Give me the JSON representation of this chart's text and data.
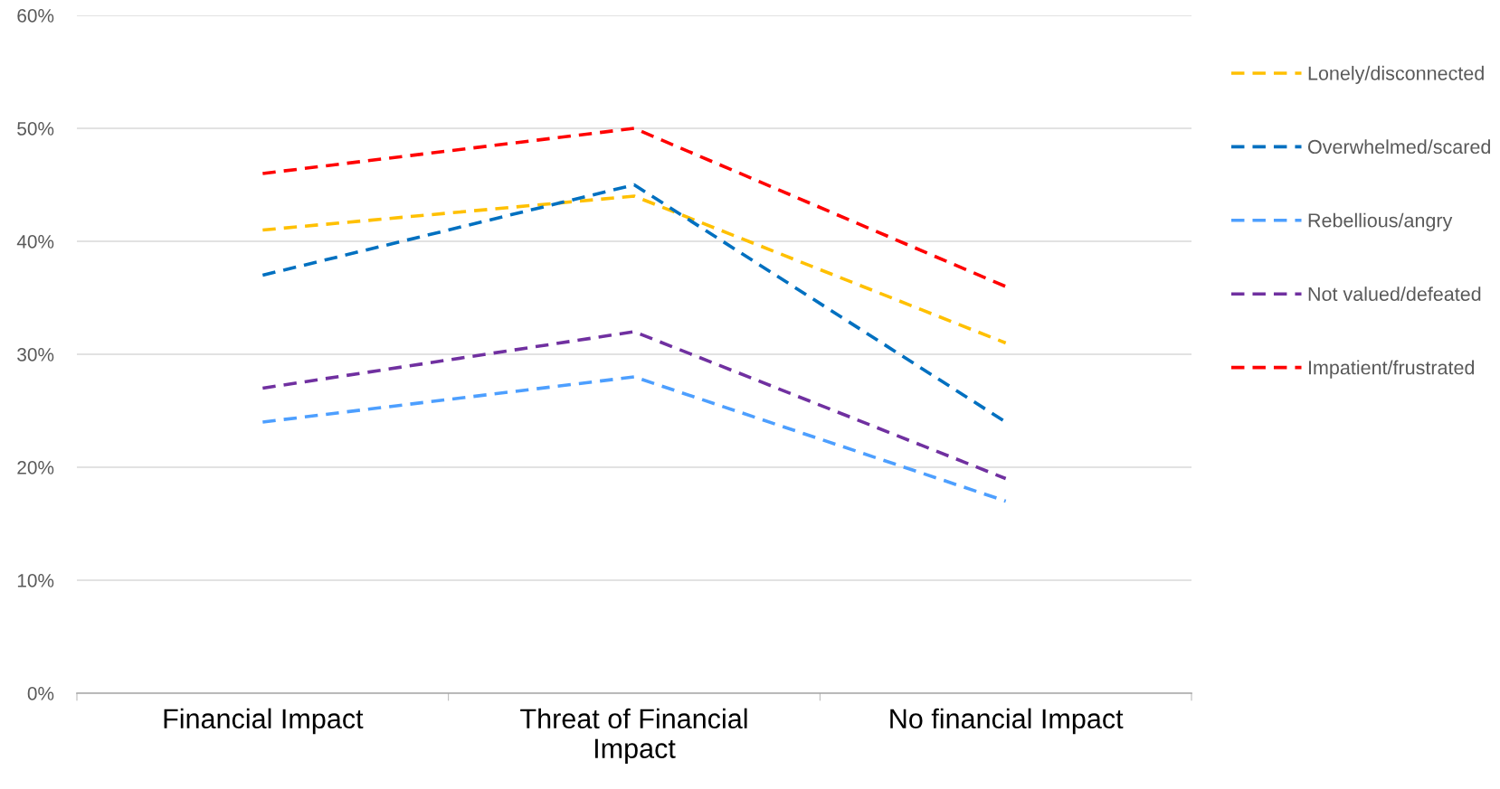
{
  "chart_data": {
    "type": "line",
    "categories": [
      "Financial Impact",
      "Threat of Financial\nImpact",
      "No financial Impact"
    ],
    "series": [
      {
        "name": "Lonely/disconnected",
        "color": "#ffc000",
        "values": [
          41,
          44,
          31
        ]
      },
      {
        "name": "Overwhelmed/scared",
        "color": "#0070c0",
        "values": [
          37,
          45,
          24
        ]
      },
      {
        "name": "Rebellious/angry",
        "color": "#4d9fff",
        "values": [
          24,
          28,
          17
        ]
      },
      {
        "name": "Not valued/defeated",
        "color": "#7030a0",
        "values": [
          27,
          32,
          19
        ]
      },
      {
        "name": "Impatient/frustrated",
        "color": "#ff0000",
        "values": [
          46,
          50,
          36
        ]
      }
    ],
    "ylim": [
      0,
      60
    ],
    "yticks": [
      {
        "value": 0,
        "label": "0%"
      },
      {
        "value": 10,
        "label": "10%"
      },
      {
        "value": 20,
        "label": "20%"
      },
      {
        "value": 30,
        "label": "30%"
      },
      {
        "value": 40,
        "label": "40%"
      },
      {
        "value": 50,
        "label": "50%"
      },
      {
        "value": 60,
        "label": "60%"
      }
    ],
    "grid": "y",
    "legend": "right",
    "line_style": "dashed",
    "marker": "none"
  }
}
